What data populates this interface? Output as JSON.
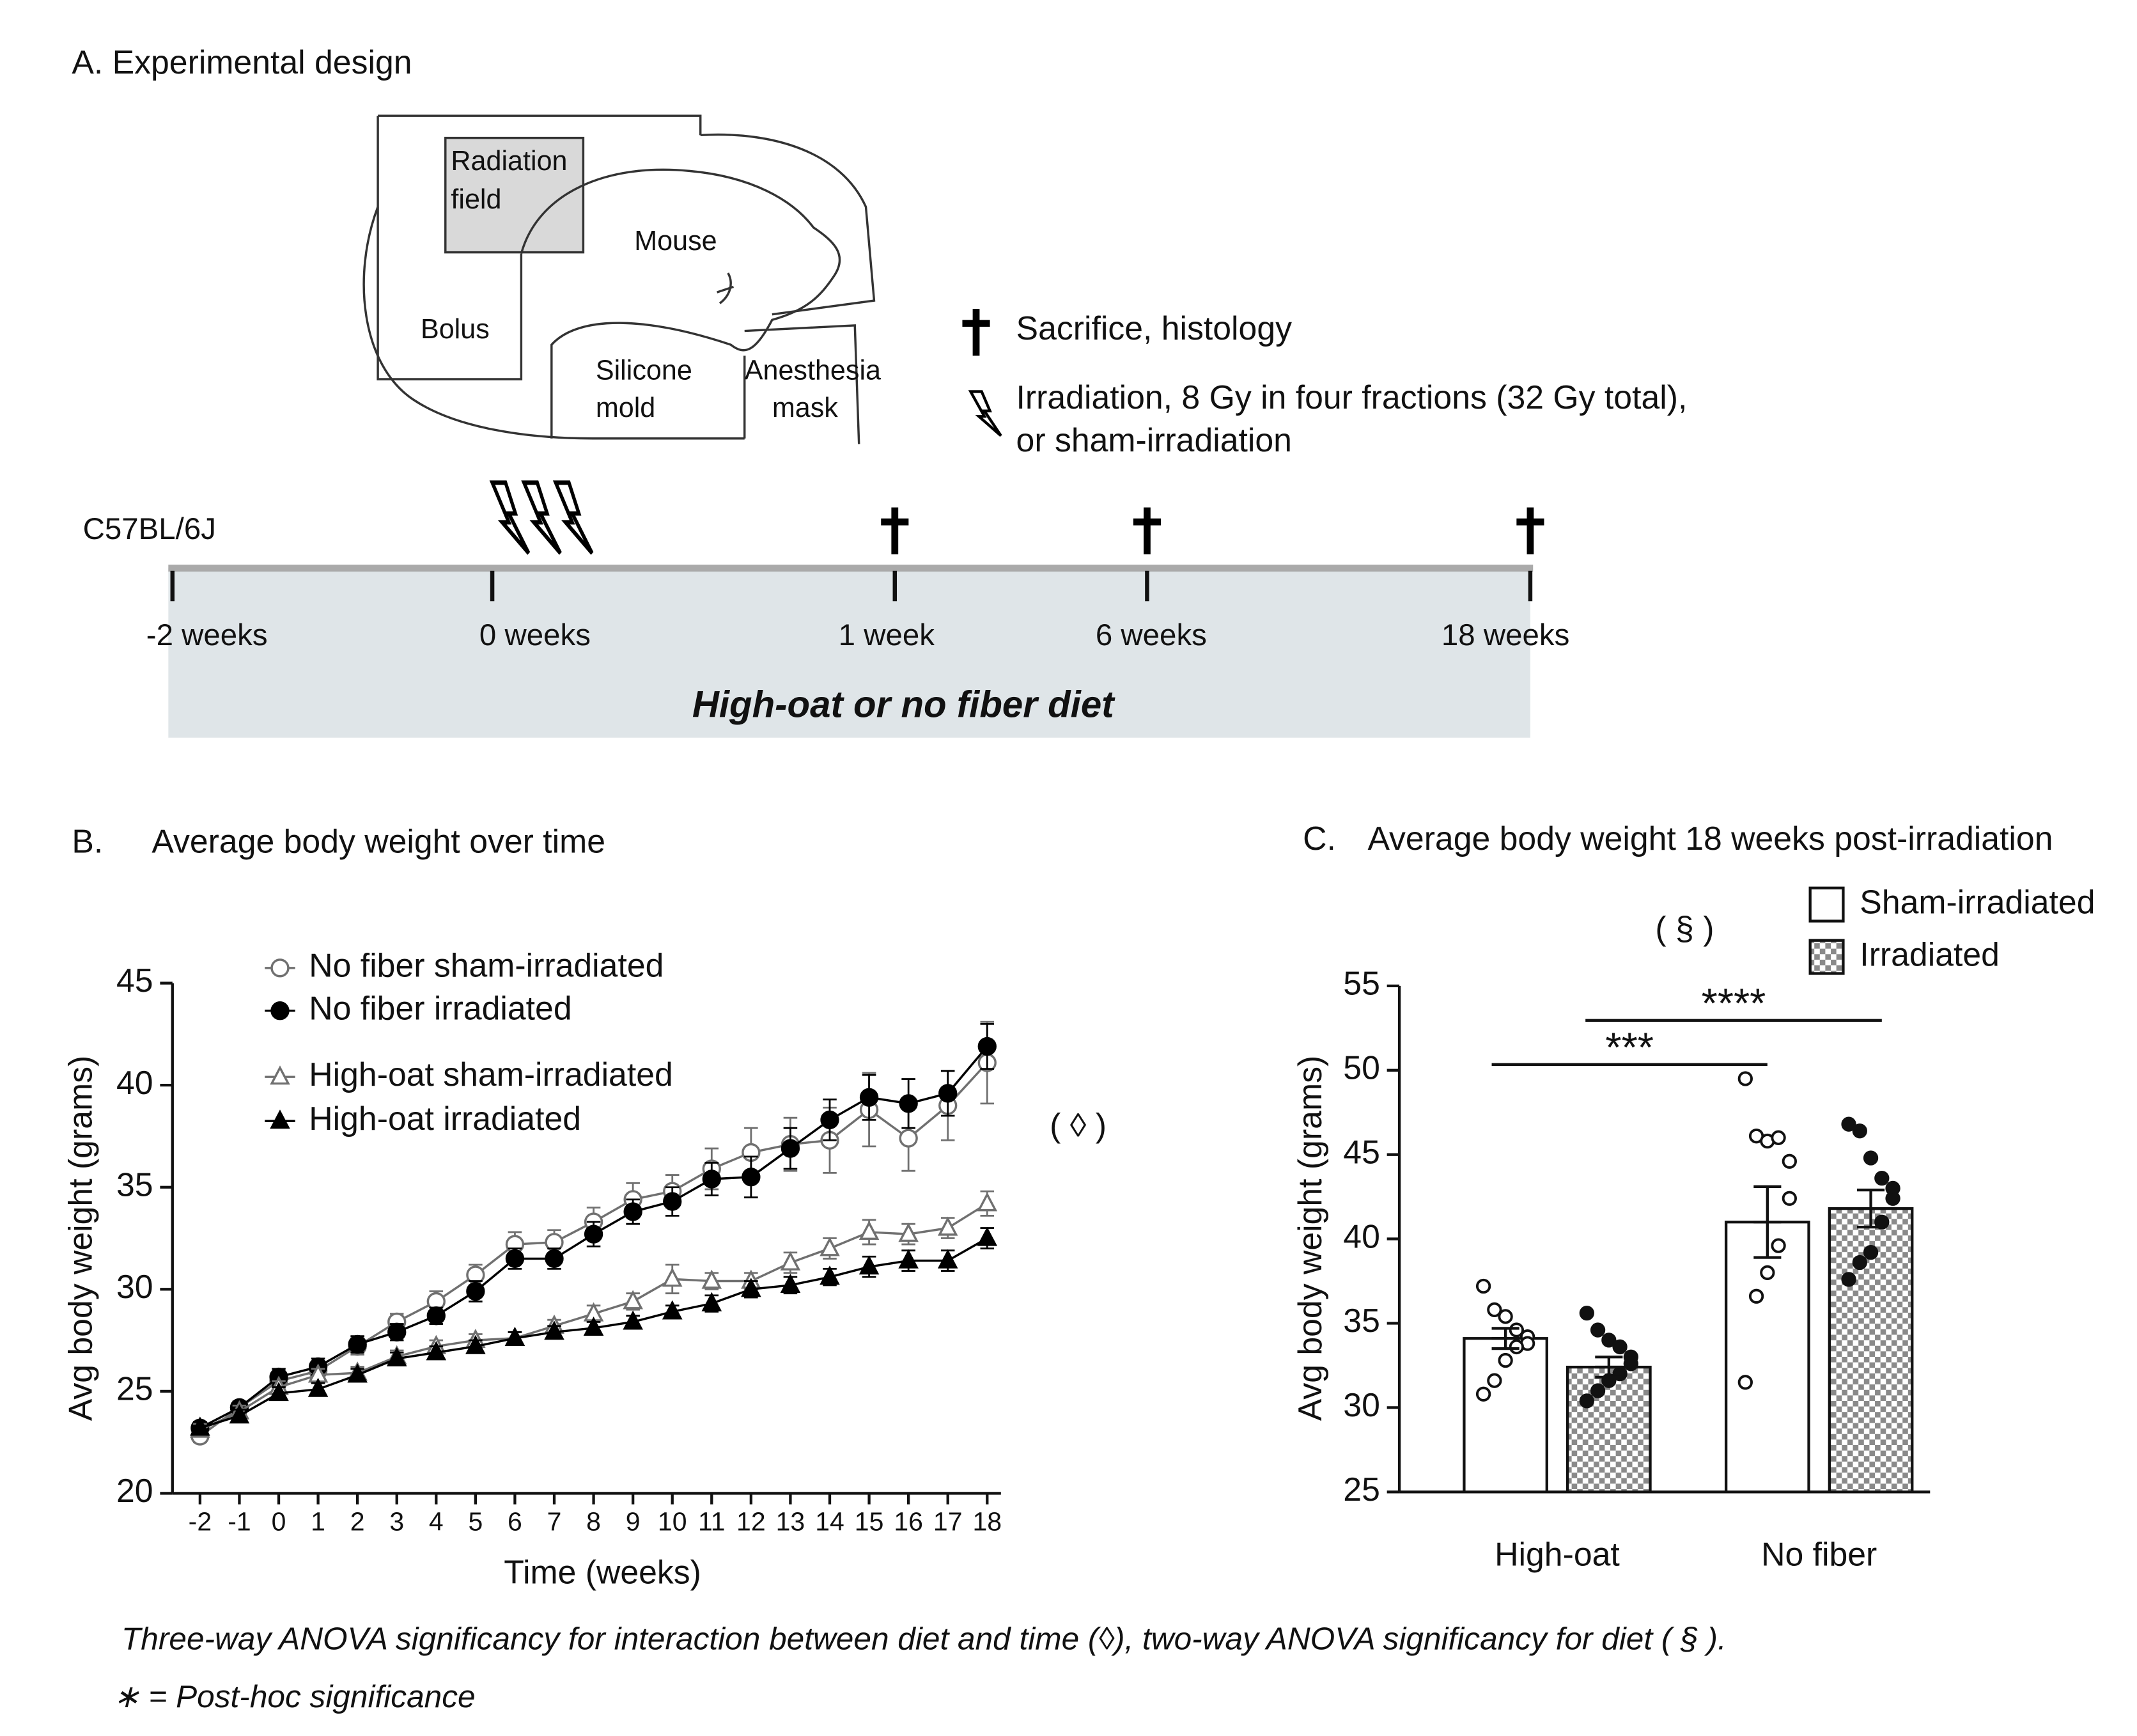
{
  "panel_a": {
    "title": "A. Experimental design",
    "diagram_labels": {
      "radiation_field": [
        "Radiation",
        "field"
      ],
      "mouse": "Mouse",
      "bolus": "Bolus",
      "silicone_mold": [
        "Silicone",
        "mold"
      ],
      "anesthesia_mask": [
        "Anesthesia",
        "mask"
      ]
    },
    "legend": {
      "sacrifice": "Sacrifice, histology",
      "irradiation": [
        "Irradiation, 8 Gy in four fractions (32 Gy total),",
        "or sham-irradiation"
      ]
    },
    "strain": "C57BL/6J",
    "timeline_labels": [
      "-2 weeks",
      "0 weeks",
      "1 week",
      "6 weeks",
      "18 weeks"
    ],
    "diet": "High-oat or no fiber diet"
  },
  "chart_data": [
    {
      "type": "line",
      "panel_label": "B.",
      "title": "Average body weight over time",
      "x_label": "Time (weeks)",
      "y_label": "Avg body weight (grams)",
      "annotation": "( ◊ )",
      "x": [
        -2,
        -1,
        0,
        1,
        2,
        3,
        4,
        5,
        6,
        7,
        8,
        9,
        10,
        11,
        12,
        13,
        14,
        15,
        16,
        17,
        18
      ],
      "xlim": [
        -2.7,
        18.35
      ],
      "xticks": [
        -2,
        -1,
        0,
        1,
        2,
        3,
        4,
        5,
        6,
        7,
        8,
        9,
        10,
        11,
        12,
        13,
        14,
        15,
        16,
        17,
        18
      ],
      "ylim": [
        20,
        45
      ],
      "yticks": [
        20,
        25,
        30,
        35,
        40,
        45
      ],
      "legend": "upper left",
      "series": [
        {
          "name": "No fiber sham-irradiated",
          "color": "#707070",
          "marker": "circle",
          "filled": false,
          "values": [
            22.8,
            24.2,
            25.5,
            26.0,
            27.2,
            28.4,
            29.4,
            30.7,
            32.2,
            32.3,
            33.3,
            34.4,
            34.8,
            35.9,
            36.7,
            37.1,
            37.3,
            38.8,
            37.4,
            39.0,
            41.1
          ],
          "errors": [
            0.3,
            0.3,
            0.4,
            0.4,
            0.4,
            0.4,
            0.5,
            0.5,
            0.6,
            0.6,
            0.7,
            0.8,
            0.8,
            1.0,
            1.2,
            1.3,
            1.6,
            1.8,
            1.6,
            1.7,
            2.0
          ]
        },
        {
          "name": "No fiber irradiated",
          "color": "#000000",
          "marker": "circle",
          "filled": true,
          "values": [
            23.2,
            24.2,
            25.7,
            26.2,
            27.3,
            27.9,
            28.7,
            29.9,
            31.5,
            31.5,
            32.7,
            33.8,
            34.3,
            35.4,
            35.5,
            36.9,
            38.3,
            39.4,
            39.1,
            39.6,
            41.9
          ],
          "errors": [
            0.3,
            0.3,
            0.4,
            0.4,
            0.4,
            0.4,
            0.4,
            0.5,
            0.5,
            0.5,
            0.6,
            0.6,
            0.7,
            0.8,
            1.0,
            1.0,
            1.0,
            1.1,
            1.2,
            1.1,
            1.1
          ]
        },
        {
          "name": "High-oat sham-irradiated",
          "color": "#707070",
          "marker": "triangle",
          "filled": false,
          "values": [
            23.1,
            24.0,
            25.2,
            25.8,
            25.9,
            26.7,
            27.2,
            27.5,
            27.6,
            28.2,
            28.8,
            29.4,
            30.5,
            30.4,
            30.4,
            31.3,
            32.0,
            32.8,
            32.7,
            33.0,
            34.2
          ],
          "errors": [
            0.3,
            0.3,
            0.3,
            0.3,
            0.3,
            0.3,
            0.3,
            0.3,
            0.3,
            0.3,
            0.4,
            0.4,
            0.7,
            0.4,
            0.4,
            0.5,
            0.5,
            0.6,
            0.5,
            0.5,
            0.6
          ]
        },
        {
          "name": "High-oat irradiated",
          "color": "#000000",
          "marker": "triangle",
          "filled": true,
          "values": [
            23.2,
            23.8,
            24.9,
            25.1,
            25.8,
            26.6,
            26.9,
            27.2,
            27.6,
            27.9,
            28.1,
            28.4,
            28.9,
            29.3,
            30.0,
            30.2,
            30.6,
            31.1,
            31.4,
            31.4,
            32.5
          ],
          "errors": [
            0.3,
            0.3,
            0.3,
            0.3,
            0.3,
            0.3,
            0.3,
            0.3,
            0.3,
            0.3,
            0.3,
            0.3,
            0.3,
            0.4,
            0.4,
            0.4,
            0.4,
            0.5,
            0.5,
            0.5,
            0.5
          ]
        }
      ]
    },
    {
      "type": "bar",
      "panel_label": "C.",
      "title": "Average body weight 18 weeks post-irradiation",
      "y_label": "Avg body weight (grams)",
      "annotation": "( § )",
      "categories": [
        "High-oat",
        "No fiber"
      ],
      "ylim": [
        25,
        55
      ],
      "yticks": [
        25,
        30,
        35,
        40,
        45,
        50,
        55
      ],
      "legend": "upper right",
      "significance": [
        "***",
        "****"
      ],
      "series": [
        {
          "name": "Sham-irradiated",
          "color": "#ffffff",
          "pattern": "solid",
          "values": [
            34.1,
            41.0
          ],
          "errors": [
            0.6,
            2.1
          ],
          "points": [
            [
              37.2,
              35.8,
              35.4,
              34.6,
              34.2,
              33.8,
              33.6,
              32.8,
              31.6,
              30.8
            ],
            [
              49.5,
              46.1,
              45.8,
              46.0,
              44.6,
              42.4,
              39.6,
              38.0,
              36.6,
              31.5
            ]
          ]
        },
        {
          "name": "Irradiated",
          "color": "#9a9a9a",
          "pattern": "checker",
          "values": [
            32.4,
            41.8
          ],
          "errors": [
            0.6,
            1.1
          ],
          "points": [
            [
              35.6,
              34.6,
              34.0,
              33.6,
              33.0,
              32.6,
              32.0,
              31.6,
              31.0,
              30.4
            ],
            [
              46.8,
              46.4,
              44.8,
              43.6,
              43.0,
              42.4,
              41.0,
              39.2,
              38.6,
              37.6
            ]
          ]
        }
      ]
    }
  ],
  "footnotes": [
    "Three-way ANOVA significancy for interaction between diet and time (◊), two-way ANOVA significancy for diet ( § ).",
    "∗ = Post-hoc significance"
  ]
}
